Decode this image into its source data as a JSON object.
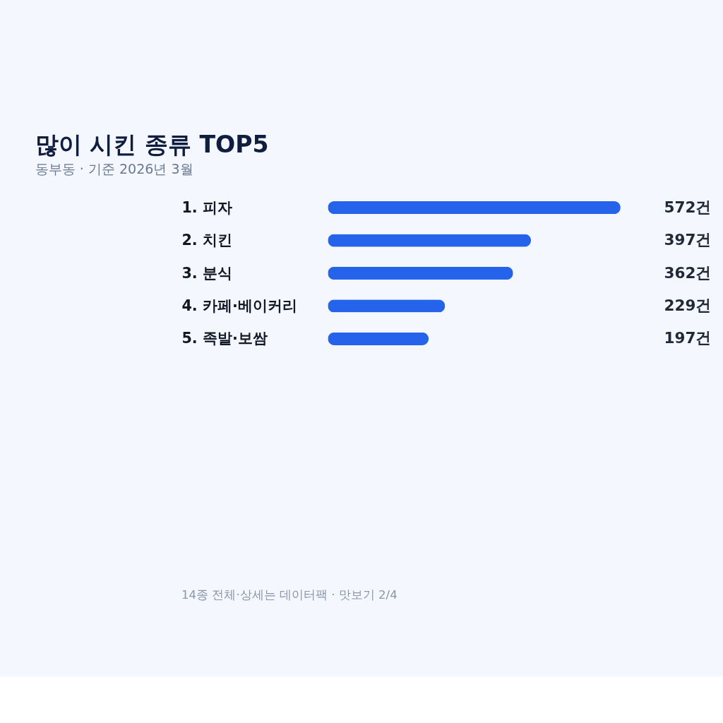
{
  "chart_data": {
    "type": "bar",
    "orientation": "horizontal",
    "title": "많이 시킨 종류 TOP5",
    "subtitle": "동부동 · 기준 2026년 3월",
    "categories": [
      "1. 피자",
      "2. 치킨",
      "3. 분식",
      "4. 카페·베이커리",
      "5. 족발·보쌈"
    ],
    "values": [
      572,
      397,
      362,
      229,
      197
    ],
    "value_labels": [
      "572건",
      "397건",
      "362건",
      "229건",
      "197건"
    ],
    "color": "#2563eb",
    "annotations": [
      "14종 전체·상세는 데이터팩 · 맛보기 2/4"
    ]
  }
}
